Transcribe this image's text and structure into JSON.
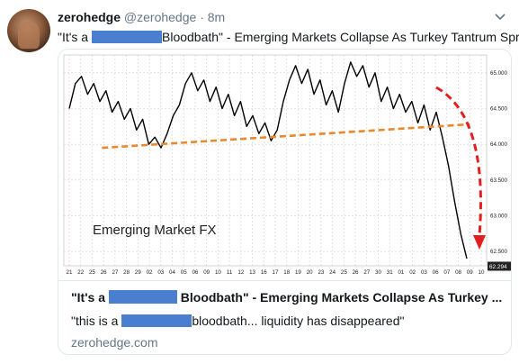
{
  "tweet": {
    "display_name": "zerohedge",
    "handle": "@zerohedge",
    "separator": "·",
    "time": "8m",
    "text_before": "\"It's a ",
    "text_after": "Bloodbath\" - Emerging Markets Collapse As Turkey Tantrum Spread"
  },
  "card": {
    "title_before": "\"It's a ",
    "title_after": " Bloodbath\" - Emerging Markets Collapse As Turkey ...",
    "desc_before": "\"this is a ",
    "desc_after": "bloodbath... liquidity has disappeared\"",
    "domain": "zerohedge.com"
  },
  "colors": {
    "redaction": "#4a7fcf",
    "trendline": "#e8892b",
    "arrow": "#e02020",
    "series": "#000000"
  },
  "chart_data": {
    "type": "line",
    "title": "Emerging Market FX",
    "ylim": [
      62.3,
      65.25
    ],
    "y_ticks": [
      "65.000",
      "64.500",
      "64.000",
      "63.500",
      "63.000",
      "62.500"
    ],
    "y_tick_values": [
      65.0,
      64.5,
      64.0,
      63.5,
      63.0,
      62.5
    ],
    "last_value_label": "62.294",
    "x_ticks": [
      "21",
      "22",
      "25",
      "26",
      "27",
      "28",
      "29",
      "02",
      "03",
      "04",
      "05",
      "06",
      "09",
      "10",
      "11",
      "12",
      "13",
      "16",
      "17",
      "18",
      "19",
      "20",
      "23",
      "24",
      "25",
      "26",
      "27",
      "30",
      "31",
      "01",
      "02",
      "03",
      "06",
      "07",
      "08",
      "09",
      "10"
    ],
    "series": [
      {
        "values": [
          64.5,
          64.85,
          64.95,
          64.7,
          64.85,
          64.6,
          64.75,
          64.45,
          64.6,
          64.35,
          64.5,
          64.2,
          64.35,
          64.0,
          64.1,
          63.95,
          64.15,
          64.4,
          64.55,
          64.85,
          65.0,
          64.75,
          64.9,
          64.6,
          64.8,
          64.5,
          64.7,
          64.4,
          64.6,
          64.25,
          64.4,
          64.15,
          64.3,
          64.05,
          64.2,
          64.6,
          64.9,
          65.1,
          64.85,
          65.05,
          64.7,
          64.9,
          64.55,
          64.75,
          64.45,
          64.85,
          65.15,
          64.95,
          65.1,
          64.8,
          65.0,
          64.6,
          64.8,
          64.5,
          64.7,
          64.45,
          64.6,
          64.3,
          64.55,
          64.2,
          64.45,
          64.1,
          63.7,
          63.2,
          62.75,
          62.4
        ]
      }
    ],
    "trendline": [
      [
        0.09,
        63.95
      ],
      [
        0.96,
        64.28
      ]
    ]
  }
}
